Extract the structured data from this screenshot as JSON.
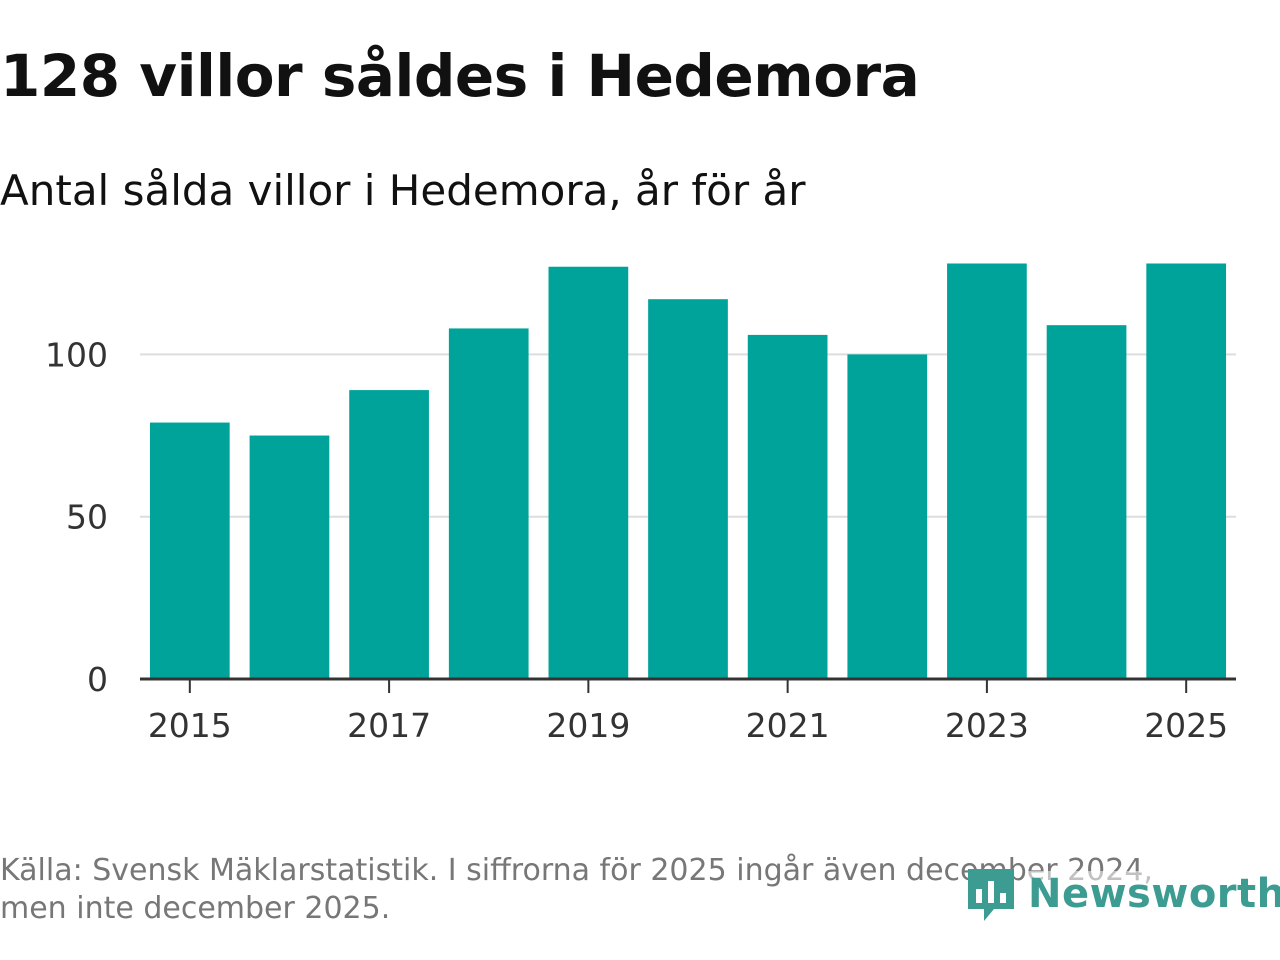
{
  "title": "128 villor såldes i Hedemora",
  "subtitle": "Antal sålda villor i Hedemora, år för år",
  "source_line1": "Källa: Svensk Mäklarstatistik. I siffrorna för 2025 ingår även december 2024,",
  "source_line2": "men inte december 2025.",
  "brand": {
    "name": "Newsworthy",
    "icon": "newsworthy-logo-icon",
    "color": "#3d9c92"
  },
  "colors": {
    "bar": "#00a39a",
    "gridline": "#dddddd",
    "axis": "#333333"
  },
  "chart_data": {
    "type": "bar",
    "categories": [
      "2015",
      "2016",
      "2017",
      "2018",
      "2019",
      "2020",
      "2021",
      "2022",
      "2023",
      "2024",
      "2025"
    ],
    "values": [
      79,
      75,
      89,
      108,
      127,
      117,
      106,
      100,
      128,
      109,
      128
    ],
    "x_tick_labels": [
      "2015",
      "2017",
      "2019",
      "2021",
      "2023",
      "2025"
    ],
    "y_ticks": [
      0,
      50,
      100
    ],
    "ylim": [
      0,
      130
    ],
    "grid": true,
    "legend": "none"
  }
}
